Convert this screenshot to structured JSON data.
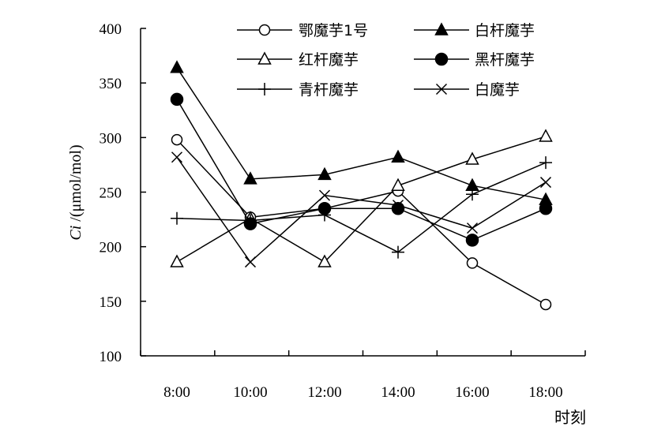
{
  "chart_data": {
    "type": "line",
    "x": [
      "8:00",
      "10:00",
      "12:00",
      "14:00",
      "16:00",
      "18:00"
    ],
    "xlabel": "时刻",
    "ylabel_italic": "Ci",
    "ylabel_rest": " /(μmol/mol)",
    "ylim": [
      100,
      400
    ],
    "yticks": [
      100,
      150,
      200,
      250,
      300,
      350,
      400
    ],
    "grid": false,
    "legend_position": "top",
    "series": [
      {
        "name": "鄂魔芋1号",
        "marker": "open-circle",
        "values": [
          298,
          227,
          235,
          251,
          185,
          147
        ]
      },
      {
        "name": "白杆魔芋",
        "marker": "filled-triangle",
        "values": [
          364,
          262,
          266,
          282,
          256,
          243
        ]
      },
      {
        "name": "红杆魔芋",
        "marker": "open-triangle",
        "values": [
          186,
          226,
          186,
          256,
          280,
          301
        ]
      },
      {
        "name": "黑杆魔芋",
        "marker": "filled-circle",
        "values": [
          335,
          221,
          235,
          235,
          206,
          235
        ]
      },
      {
        "name": "青杆魔芋",
        "marker": "plus",
        "values": [
          226,
          224,
          229,
          195,
          248,
          277
        ]
      },
      {
        "name": "白魔芋",
        "marker": "cross",
        "values": [
          282,
          186,
          247,
          238,
          217,
          259
        ]
      }
    ]
  }
}
